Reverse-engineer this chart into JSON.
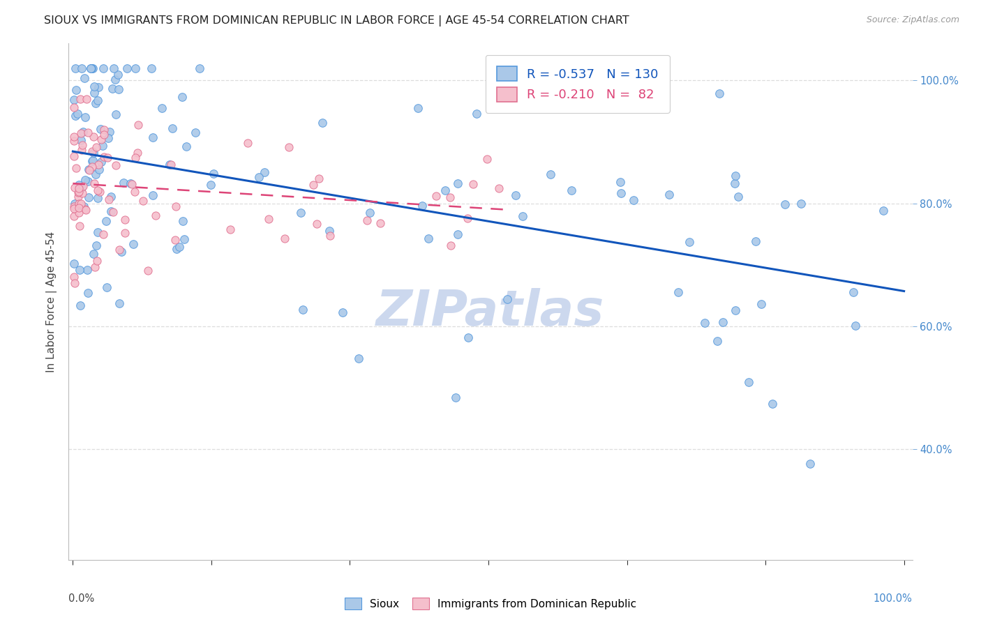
{
  "title": "SIOUX VS IMMIGRANTS FROM DOMINICAN REPUBLIC IN LABOR FORCE | AGE 45-54 CORRELATION CHART",
  "source": "Source: ZipAtlas.com",
  "ylabel": "In Labor Force | Age 45-54",
  "y_ticks": [
    0.4,
    0.6,
    0.8,
    1.0
  ],
  "sioux_R": -0.537,
  "sioux_N": 130,
  "dr_R": -0.21,
  "dr_N": 82,
  "sioux_color": "#aac8e8",
  "dr_color": "#f5bfcc",
  "sioux_edge_color": "#5599dd",
  "dr_edge_color": "#e07090",
  "sioux_line_color": "#1155bb",
  "dr_line_color": "#dd4477",
  "background_color": "#ffffff",
  "watermark": "ZIPatlas",
  "watermark_color": "#ccd8ee",
  "grid_color": "#dddddd",
  "ytick_color": "#4488cc",
  "xtick_color": "#333333"
}
